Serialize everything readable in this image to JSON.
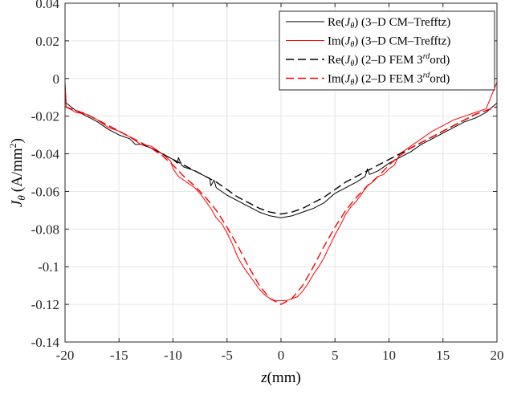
{
  "chart_data": {
    "type": "line",
    "xlabel_var": "z",
    "xlabel_unit": "(mm)",
    "ylabel_var": "J",
    "ylabel_sub": "θ",
    "ylabel_unit_pre": "(A/mm",
    "ylabel_unit_sup": "2",
    "ylabel_unit_post": ")",
    "xlim": [
      -20,
      20
    ],
    "ylim": [
      -0.14,
      0.04
    ],
    "xticks": [
      -20,
      -15,
      -10,
      -5,
      0,
      5,
      10,
      15,
      20
    ],
    "xtick_labels": [
      "-20",
      "-15",
      "-10",
      "-5",
      "0",
      "5",
      "10",
      "15",
      "20"
    ],
    "yticks": [
      0.04,
      0.02,
      0,
      -0.02,
      -0.04,
      -0.06,
      -0.08,
      -0.1,
      -0.12,
      -0.14
    ],
    "ytick_labels": [
      "0.04",
      "0.02",
      "0",
      "-0.02",
      "-0.04",
      "-0.06",
      "-0.08",
      "-0.1",
      "-0.12",
      "-0.14"
    ],
    "grid": true,
    "legend_position": "top-right",
    "series": [
      {
        "name": "Re(Jθ) (3–D CM–Trefftz)",
        "legend": {
          "pre": "Re(",
          "var": "J",
          "sub": "θ",
          "post": ") (3–D CM–Trefftz)",
          "sup": "",
          "post2": ""
        },
        "color": "#000000",
        "dash": "solid",
        "x": [
          -20,
          -19.9,
          -19,
          -18,
          -17,
          -16,
          -15,
          -14,
          -13.5,
          -13,
          -12,
          -11,
          -10,
          -9.6,
          -9.5,
          -9.2,
          -9,
          -8,
          -7,
          -6.6,
          -6.5,
          -6.2,
          -6,
          -5,
          -4,
          -3,
          -2,
          -1,
          0,
          1,
          2,
          3,
          4,
          5,
          6,
          7,
          7.8,
          8,
          8.2,
          9,
          10,
          11,
          12,
          13,
          14,
          15,
          16,
          17,
          18,
          19,
          20
        ],
        "y": [
          -0.002,
          -0.013,
          -0.017,
          -0.02,
          -0.023,
          -0.027,
          -0.03,
          -0.032,
          -0.035,
          -0.035,
          -0.037,
          -0.04,
          -0.043,
          -0.045,
          -0.042,
          -0.046,
          -0.047,
          -0.049,
          -0.052,
          -0.053,
          -0.057,
          -0.054,
          -0.058,
          -0.062,
          -0.065,
          -0.068,
          -0.071,
          -0.073,
          -0.074,
          -0.073,
          -0.071,
          -0.069,
          -0.066,
          -0.061,
          -0.058,
          -0.055,
          -0.052,
          -0.048,
          -0.051,
          -0.049,
          -0.045,
          -0.042,
          -0.039,
          -0.035,
          -0.032,
          -0.029,
          -0.026,
          -0.023,
          -0.021,
          -0.018,
          -0.013
        ]
      },
      {
        "name": "Im(Jθ) (3–D CM–Trefftz)",
        "legend": {
          "pre": "Im(",
          "var": "J",
          "sub": "θ",
          "post": ") (3–D CM–Trefftz)",
          "sup": "",
          "post2": ""
        },
        "color": "#ff0000",
        "dash": "solid",
        "x": [
          -20,
          -19.9,
          -19,
          -18,
          -17,
          -16,
          -15,
          -14,
          -13,
          -12,
          -11,
          -10.2,
          -10,
          -9.5,
          -9,
          -8.5,
          -8,
          -7.5,
          -7,
          -6.5,
          -6,
          -5.5,
          -5,
          -4.5,
          -4,
          -3.5,
          -3,
          -2.5,
          -2,
          -1.5,
          -1,
          -0.5,
          0,
          0.5,
          1,
          1.5,
          2,
          2.5,
          3,
          3.5,
          4,
          4.5,
          5,
          5.5,
          6,
          6.5,
          7,
          7.5,
          8,
          8.5,
          9,
          9.5,
          10,
          10.5,
          11,
          12,
          13,
          14,
          15,
          16,
          17,
          18,
          19,
          20
        ],
        "y": [
          -0.003,
          -0.015,
          -0.018,
          -0.019,
          -0.022,
          -0.026,
          -0.028,
          -0.031,
          -0.035,
          -0.036,
          -0.04,
          -0.044,
          -0.048,
          -0.052,
          -0.054,
          -0.056,
          -0.058,
          -0.061,
          -0.065,
          -0.069,
          -0.074,
          -0.077,
          -0.082,
          -0.088,
          -0.095,
          -0.1,
          -0.104,
          -0.108,
          -0.112,
          -0.115,
          -0.117,
          -0.118,
          -0.118,
          -0.118,
          -0.117,
          -0.116,
          -0.113,
          -0.109,
          -0.104,
          -0.1,
          -0.095,
          -0.089,
          -0.083,
          -0.078,
          -0.072,
          -0.068,
          -0.065,
          -0.061,
          -0.057,
          -0.055,
          -0.052,
          -0.051,
          -0.048,
          -0.046,
          -0.04,
          -0.036,
          -0.032,
          -0.028,
          -0.025,
          -0.022,
          -0.02,
          -0.018,
          -0.016,
          -0.002
        ]
      },
      {
        "name": "Re(Jθ) (2–D FEM 3rdord)",
        "legend": {
          "pre": "Re(",
          "var": "J",
          "sub": "θ",
          "post": ") (2–D FEM 3",
          "sup": "rd",
          "post2": "ord)"
        },
        "color": "#000000",
        "dash": "dashed",
        "x": [
          -20,
          -19,
          -18,
          -17,
          -16,
          -15,
          -14,
          -13,
          -12,
          -11,
          -10,
          -9,
          -8,
          -7,
          -6,
          -5,
          -4,
          -3,
          -2,
          -1,
          0,
          1,
          2,
          3,
          4,
          5,
          6,
          7,
          8,
          9,
          10,
          11,
          12,
          13,
          14,
          15,
          16,
          17,
          18,
          19,
          20
        ],
        "y": [
          -0.015,
          -0.017,
          -0.019,
          -0.022,
          -0.025,
          -0.028,
          -0.031,
          -0.034,
          -0.037,
          -0.04,
          -0.043,
          -0.046,
          -0.049,
          -0.052,
          -0.055,
          -0.059,
          -0.063,
          -0.066,
          -0.069,
          -0.071,
          -0.072,
          -0.071,
          -0.069,
          -0.066,
          -0.063,
          -0.059,
          -0.055,
          -0.052,
          -0.049,
          -0.046,
          -0.043,
          -0.04,
          -0.037,
          -0.034,
          -0.031,
          -0.028,
          -0.025,
          -0.022,
          -0.019,
          -0.017,
          -0.015
        ]
      },
      {
        "name": "Im(Jθ) (2–D FEM 3rdord)",
        "legend": {
          "pre": "Im(",
          "var": "J",
          "sub": "θ",
          "post": ") (2–D FEM 3",
          "sup": "rd",
          "post2": "ord)"
        },
        "color": "#ff0000",
        "dash": "dashed",
        "x": [
          -20,
          -19,
          -18,
          -17,
          -16,
          -15,
          -14,
          -13,
          -12,
          -11,
          -10,
          -9,
          -8,
          -7,
          -6,
          -5,
          -4,
          -3,
          -2,
          -1,
          0,
          1,
          2,
          3,
          4,
          5,
          6,
          7,
          8,
          9,
          10,
          11,
          12,
          13,
          14,
          15,
          16,
          17,
          18,
          19,
          20
        ],
        "y": [
          -0.015,
          -0.017,
          -0.019,
          -0.022,
          -0.025,
          -0.028,
          -0.031,
          -0.034,
          -0.037,
          -0.041,
          -0.046,
          -0.052,
          -0.057,
          -0.063,
          -0.07,
          -0.079,
          -0.089,
          -0.1,
          -0.11,
          -0.117,
          -0.12,
          -0.117,
          -0.11,
          -0.1,
          -0.089,
          -0.079,
          -0.07,
          -0.063,
          -0.057,
          -0.052,
          -0.046,
          -0.041,
          -0.037,
          -0.034,
          -0.031,
          -0.028,
          -0.025,
          -0.022,
          -0.019,
          -0.017,
          -0.015
        ]
      }
    ]
  }
}
